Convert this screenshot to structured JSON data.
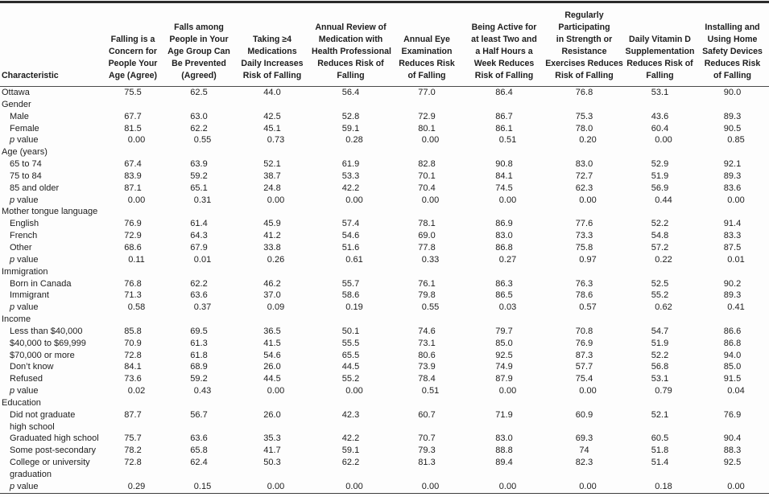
{
  "table": {
    "char_header": "Characteristic",
    "columns": [
      "Falling is a\nConcern for\nPeople Your\nAge (Agree)",
      "Falls among\nPeople in Your\nAge Group Can\nBe Prevented\n(Agreed)",
      "Taking ≥4\nMedications\nDaily Increases\nRisk of Falling",
      "Annual Review of\nMedication with\nHealth Professional\nReduces Risk of\nFalling",
      "Annual Eye\nExamination\nReduces Risk\nof Falling",
      "Being Active for\nat least Two and\na Half Hours a\nWeek Reduces\nRisk of Falling",
      "Regularly\nParticipating\nin Strength or\nResistance\nExercises Reduces\nRisk of Falling",
      "Daily Vitamin D\nSupplementation\nReduces Risk of\nFalling",
      "Installing and\nUsing Home\nSafety Devices\nReduces Risk\nof Falling"
    ],
    "rows": [
      {
        "label": "Ottawa",
        "group": false,
        "indent": false,
        "pvalue": false,
        "values": [
          "75.5",
          "62.5",
          "44.0",
          "56.4",
          "77.0",
          "86.4",
          "76.8",
          "53.1",
          "90.0"
        ]
      },
      {
        "label": "Gender",
        "group": true
      },
      {
        "label": "Male",
        "group": false,
        "indent": true,
        "pvalue": false,
        "values": [
          "67.7",
          "63.0",
          "42.5",
          "52.8",
          "72.9",
          "86.7",
          "75.3",
          "43.6",
          "89.3"
        ]
      },
      {
        "label": "Female",
        "group": false,
        "indent": true,
        "pvalue": false,
        "values": [
          "81.5",
          "62.2",
          "45.1",
          "59.1",
          "80.1",
          "86.1",
          "78.0",
          "60.4",
          "90.5"
        ]
      },
      {
        "label": "p value",
        "group": false,
        "indent": true,
        "pvalue": true,
        "values": [
          "0.00",
          "0.55",
          "0.73",
          "0.28",
          "0.00",
          "0.51",
          "0.20",
          "0.00",
          "0.85"
        ]
      },
      {
        "label": "Age (years)",
        "group": true
      },
      {
        "label": "65 to 74",
        "group": false,
        "indent": true,
        "pvalue": false,
        "values": [
          "67.4",
          "63.9",
          "52.1",
          "61.9",
          "82.8",
          "90.8",
          "83.0",
          "52.9",
          "92.1"
        ]
      },
      {
        "label": "75 to 84",
        "group": false,
        "indent": true,
        "pvalue": false,
        "values": [
          "83.9",
          "59.2",
          "38.7",
          "53.3",
          "70.1",
          "84.1",
          "72.7",
          "51.9",
          "89.3"
        ]
      },
      {
        "label": "85 and older",
        "group": false,
        "indent": true,
        "pvalue": false,
        "values": [
          "87.1",
          "65.1",
          "24.8",
          "42.2",
          "70.4",
          "74.5",
          "62.3",
          "56.9",
          "83.6"
        ]
      },
      {
        "label": "p value",
        "group": false,
        "indent": true,
        "pvalue": true,
        "values": [
          "0.00",
          "0.31",
          "0.00",
          "0.00",
          "0.00",
          "0.00",
          "0.00",
          "0.44",
          "0.00"
        ]
      },
      {
        "label": "Mother tongue language",
        "group": true
      },
      {
        "label": "English",
        "group": false,
        "indent": true,
        "pvalue": false,
        "values": [
          "76.9",
          "61.4",
          "45.9",
          "57.4",
          "78.1",
          "86.9",
          "77.6",
          "52.2",
          "91.4"
        ]
      },
      {
        "label": "French",
        "group": false,
        "indent": true,
        "pvalue": false,
        "values": [
          "72.9",
          "64.3",
          "41.2",
          "54.6",
          "69.0",
          "83.0",
          "73.3",
          "54.8",
          "83.3"
        ]
      },
      {
        "label": "Other",
        "group": false,
        "indent": true,
        "pvalue": false,
        "values": [
          "68.6",
          "67.9",
          "33.8",
          "51.6",
          "77.8",
          "86.8",
          "75.8",
          "57.2",
          "87.5"
        ]
      },
      {
        "label": "p value",
        "group": false,
        "indent": true,
        "pvalue": true,
        "values": [
          "0.11",
          "0.01",
          "0.26",
          "0.61",
          "0.33",
          "0.27",
          "0.97",
          "0.22",
          "0.01"
        ]
      },
      {
        "label": "Immigration",
        "group": true
      },
      {
        "label": "Born in Canada",
        "group": false,
        "indent": true,
        "pvalue": false,
        "values": [
          "76.8",
          "62.2",
          "46.2",
          "55.7",
          "76.1",
          "86.3",
          "76.3",
          "52.5",
          "90.2"
        ]
      },
      {
        "label": "Immigrant",
        "group": false,
        "indent": true,
        "pvalue": false,
        "values": [
          "71.3",
          "63.6",
          "37.0",
          "58.6",
          "79.8",
          "86.5",
          "78.6",
          "55.2",
          "89.3"
        ]
      },
      {
        "label": "p value",
        "group": false,
        "indent": true,
        "pvalue": true,
        "values": [
          "0.58",
          "0.37",
          "0.09",
          "0.19",
          "0.55",
          "0.03",
          "0.57",
          "0.62",
          "0.41"
        ]
      },
      {
        "label": "Income",
        "group": true
      },
      {
        "label": "Less than $40,000",
        "group": false,
        "indent": true,
        "pvalue": false,
        "values": [
          "85.8",
          "69.5",
          "36.5",
          "50.1",
          "74.6",
          "79.7",
          "70.8",
          "54.7",
          "86.6"
        ]
      },
      {
        "label": "$40,000 to $69,999",
        "group": false,
        "indent": true,
        "pvalue": false,
        "values": [
          "70.9",
          "61.3",
          "41.5",
          "55.5",
          "73.1",
          "85.0",
          "76.9",
          "51.9",
          "86.8"
        ]
      },
      {
        "label": "$70,000 or more",
        "group": false,
        "indent": true,
        "pvalue": false,
        "values": [
          "72.8",
          "61.8",
          "54.6",
          "65.5",
          "80.6",
          "92.5",
          "87.3",
          "52.2",
          "94.0"
        ]
      },
      {
        "label": "Don’t know",
        "group": false,
        "indent": true,
        "pvalue": false,
        "values": [
          "84.1",
          "68.9",
          "26.0",
          "44.5",
          "73.9",
          "74.9",
          "57.7",
          "56.8",
          "85.0"
        ]
      },
      {
        "label": "Refused",
        "group": false,
        "indent": true,
        "pvalue": false,
        "values": [
          "73.6",
          "59.2",
          "44.5",
          "55.2",
          "78.4",
          "87.9",
          "75.4",
          "53.1",
          "91.5"
        ]
      },
      {
        "label": "p value",
        "group": false,
        "indent": true,
        "pvalue": true,
        "values": [
          "0.02",
          "0.43",
          "0.00",
          "0.00",
          "0.51",
          "0.00",
          "0.00",
          "0.79",
          "0.04"
        ]
      },
      {
        "label": "Education",
        "group": true
      },
      {
        "label": "Did not graduate\nhigh school",
        "group": false,
        "indent": true,
        "pvalue": false,
        "values": [
          "87.7",
          "56.7",
          "26.0",
          "42.3",
          "60.7",
          "71.9",
          "60.9",
          "52.1",
          "76.9"
        ]
      },
      {
        "label": "Graduated high school",
        "group": false,
        "indent": true,
        "pvalue": false,
        "values": [
          "75.7",
          "63.6",
          "35.3",
          "42.2",
          "70.7",
          "83.0",
          "69.3",
          "60.5",
          "90.4"
        ]
      },
      {
        "label": "Some post-secondary",
        "group": false,
        "indent": true,
        "pvalue": false,
        "values": [
          "78.2",
          "65.8",
          "41.7",
          "59.1",
          "79.3",
          "88.8",
          "74",
          "51.8",
          "88.3"
        ]
      },
      {
        "label": "College or university\ngraduation",
        "group": false,
        "indent": true,
        "pvalue": false,
        "values": [
          "72.8",
          "62.4",
          "50.3",
          "62.2",
          "81.3",
          "89.4",
          "82.3",
          "51.4",
          "92.5"
        ]
      },
      {
        "label": "p value",
        "group": false,
        "indent": true,
        "pvalue": true,
        "values": [
          "0.29",
          "0.15",
          "0.00",
          "0.00",
          "0.00",
          "0.00",
          "0.00",
          "0.18",
          "0.00"
        ]
      }
    ]
  }
}
